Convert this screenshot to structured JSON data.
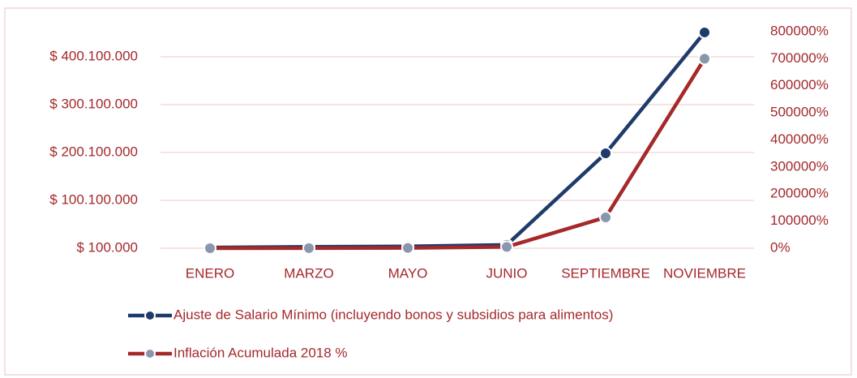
{
  "chart_data": {
    "type": "line",
    "categories": [
      "ENERO",
      "MARZO",
      "MAYO",
      "JUNIO",
      "SEPTIEMBRE",
      "NOVIEMBRE"
    ],
    "series": [
      {
        "name": "Ajuste de Salario Mínimo (incluyendo bonos y subsidios para alimentos)",
        "color": "#1f3b6b",
        "marker_color": "#1f3b6b",
        "values": [
          1500000,
          3000000,
          4000000,
          7000000,
          198400000,
          451000000
        ]
      },
      {
        "name": "Inflación Acumulada 2018 %",
        "color": "#a5282b",
        "marker_color": "#8a96ad",
        "axis": "y2",
        "values": [
          100,
          500,
          1000,
          5000,
          114000,
          700000
        ]
      }
    ],
    "ylim": [
      100000,
      452600000
    ],
    "yticks": [
      {
        "value": 100000,
        "label": "$ 100.000"
      },
      {
        "value": 100100000,
        "label": "$ 100.100.000"
      },
      {
        "value": 200100000,
        "label": "$ 200.100.000"
      },
      {
        "value": 300100000,
        "label": "$ 300.100.000"
      },
      {
        "value": 400100000,
        "label": "$ 400.100.000"
      }
    ],
    "y2lim": [
      0,
      800000
    ],
    "y2ticks": [
      {
        "value": 0,
        "label": "0%"
      },
      {
        "value": 100000,
        "label": "100000%"
      },
      {
        "value": 200000,
        "label": "200000%"
      },
      {
        "value": 300000,
        "label": "300000%"
      },
      {
        "value": 400000,
        "label": "400000%"
      },
      {
        "value": 500000,
        "label": "500000%"
      },
      {
        "value": 600000,
        "label": "600000%"
      },
      {
        "value": 700000,
        "label": "700000%"
      },
      {
        "value": 800000,
        "label": "800000%"
      }
    ],
    "grid": true
  }
}
